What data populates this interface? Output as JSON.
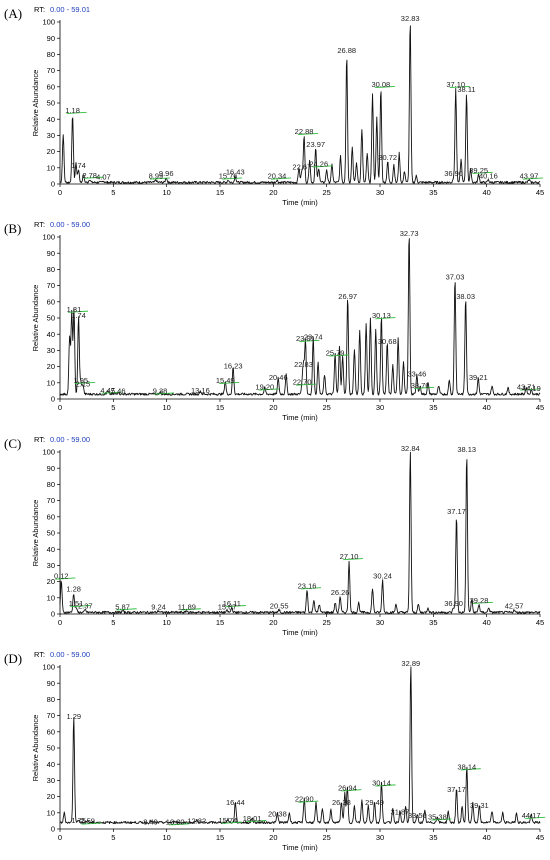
{
  "colors": {
    "trace": "#111111",
    "rt_value": "#1f3fbf",
    "baseline_marker": "#2bbf3a",
    "axis": "#000000"
  },
  "chart_data": [
    {
      "type": "line",
      "panel": "(A)",
      "rt_prefix": "RT:",
      "rt_range": "0.00 - 59.01",
      "xlabel": "Time (min)",
      "ylabel": "Relative Abundance",
      "xlim": [
        0,
        45
      ],
      "ylim": [
        0,
        100
      ],
      "xticks": [
        0,
        5,
        10,
        15,
        20,
        25,
        30,
        35,
        40,
        45
      ],
      "yticks": [
        0,
        10,
        20,
        30,
        40,
        50,
        60,
        70,
        80,
        90,
        100
      ],
      "peaks": [
        {
          "rt": 1.18,
          "y": 42,
          "label": "1.18"
        },
        {
          "rt": 1.74,
          "y": 8,
          "label": "1.74"
        },
        {
          "rt": 2.78,
          "y": 2,
          "label": "2.78"
        },
        {
          "rt": 4.07,
          "y": 1,
          "label": "4.07"
        },
        {
          "rt": 8.99,
          "y": 1.5,
          "label": "8.99"
        },
        {
          "rt": 9.96,
          "y": 3,
          "label": "9.96"
        },
        {
          "rt": 15.76,
          "y": 1.5,
          "label": "15.76"
        },
        {
          "rt": 16.43,
          "y": 4,
          "label": "16.43"
        },
        {
          "rt": 20.34,
          "y": 1.5,
          "label": "20.34"
        },
        {
          "rt": 22.67,
          "y": 7,
          "label": "22.67"
        },
        {
          "rt": 22.88,
          "y": 29,
          "label": "22.88"
        },
        {
          "rt": 23.97,
          "y": 21,
          "label": "23.97"
        },
        {
          "rt": 24.26,
          "y": 9,
          "label": "24.26"
        },
        {
          "rt": 26.88,
          "y": 79,
          "label": "26.88"
        },
        {
          "rt": 30.08,
          "y": 58,
          "label": "30.08"
        },
        {
          "rt": 30.72,
          "y": 13,
          "label": "30.72"
        },
        {
          "rt": 32.83,
          "y": 100,
          "label": "32.83"
        },
        {
          "rt": 36.9,
          "y": 3,
          "label": "36.90"
        },
        {
          "rt": 37.1,
          "y": 58,
          "label": "37.10"
        },
        {
          "rt": 38.11,
          "y": 55,
          "label": "38.11"
        },
        {
          "rt": 39.25,
          "y": 5,
          "label": "39.25"
        },
        {
          "rt": 40.16,
          "y": 1.5,
          "label": "40.16"
        },
        {
          "rt": 43.97,
          "y": 1.5,
          "label": "43.97"
        }
      ],
      "extra_peaks": [
        {
          "rt": 0.3,
          "y": 30
        },
        {
          "rt": 1.5,
          "y": 12
        },
        {
          "rt": 2.2,
          "y": 5
        },
        {
          "rt": 22.4,
          "y": 9
        },
        {
          "rt": 23.4,
          "y": 14
        },
        {
          "rt": 25.0,
          "y": 8
        },
        {
          "rt": 25.5,
          "y": 11
        },
        {
          "rt": 26.3,
          "y": 16
        },
        {
          "rt": 27.4,
          "y": 22
        },
        {
          "rt": 27.8,
          "y": 12
        },
        {
          "rt": 28.3,
          "y": 33
        },
        {
          "rt": 28.8,
          "y": 18
        },
        {
          "rt": 29.3,
          "y": 55
        },
        {
          "rt": 29.7,
          "y": 40
        },
        {
          "rt": 31.3,
          "y": 11
        },
        {
          "rt": 31.8,
          "y": 18
        },
        {
          "rt": 32.3,
          "y": 7
        },
        {
          "rt": 33.4,
          "y": 4
        },
        {
          "rt": 37.6,
          "y": 14
        },
        {
          "rt": 38.5,
          "y": 8
        }
      ],
      "baseline_y": 1
    },
    {
      "type": "line",
      "panel": "(B)",
      "rt_prefix": "RT:",
      "rt_range": "0.00 - 59.00",
      "xlabel": "Time (min)",
      "ylabel": "Relative Abundance",
      "xlim": [
        0,
        45
      ],
      "ylim": [
        0,
        100
      ],
      "xticks": [
        0,
        5,
        10,
        15,
        20,
        25,
        30,
        35,
        40,
        45
      ],
      "yticks": [
        0,
        10,
        20,
        30,
        40,
        50,
        60,
        70,
        80,
        90,
        100
      ],
      "peaks": [
        {
          "rt": 1.31,
          "y": 52,
          "label": "1.31"
        },
        {
          "rt": 1.74,
          "y": 48,
          "label": "1.74"
        },
        {
          "rt": 1.95,
          "y": 8,
          "label": "1.95"
        },
        {
          "rt": 2.15,
          "y": 6,
          "label": "2.15"
        },
        {
          "rt": 4.47,
          "y": 2,
          "label": "4.47"
        },
        {
          "rt": 5.46,
          "y": 1.5,
          "label": "5.46"
        },
        {
          "rt": 9.38,
          "y": 1.5,
          "label": "9.38"
        },
        {
          "rt": 13.16,
          "y": 2,
          "label": "13.16"
        },
        {
          "rt": 15.49,
          "y": 8,
          "label": "15.49"
        },
        {
          "rt": 16.23,
          "y": 17,
          "label": "16.23"
        },
        {
          "rt": 19.2,
          "y": 4,
          "label": "19.20"
        },
        {
          "rt": 20.46,
          "y": 10,
          "label": "20.46"
        },
        {
          "rt": 22.7,
          "y": 7,
          "label": "22.70"
        },
        {
          "rt": 22.83,
          "y": 18,
          "label": "22.83"
        },
        {
          "rt": 23.01,
          "y": 34,
          "label": "23.01"
        },
        {
          "rt": 23.74,
          "y": 35,
          "label": "23.74"
        },
        {
          "rt": 25.79,
          "y": 25,
          "label": "25.79"
        },
        {
          "rt": 26.97,
          "y": 60,
          "label": "26.97"
        },
        {
          "rt": 30.13,
          "y": 48,
          "label": "30.13"
        },
        {
          "rt": 30.68,
          "y": 32,
          "label": "30.68"
        },
        {
          "rt": 32.73,
          "y": 100,
          "label": "32.73"
        },
        {
          "rt": 33.46,
          "y": 12,
          "label": "33.46"
        },
        {
          "rt": 33.76,
          "y": 5,
          "label": "33.76"
        },
        {
          "rt": 37.03,
          "y": 72,
          "label": "37.03"
        },
        {
          "rt": 38.03,
          "y": 60,
          "label": "38.03"
        },
        {
          "rt": 39.21,
          "y": 10,
          "label": "39.21"
        },
        {
          "rt": 43.71,
          "y": 4,
          "label": "43.71"
        },
        {
          "rt": 44.19,
          "y": 3,
          "label": "44.19"
        }
      ],
      "extra_peaks": [
        {
          "rt": 0.9,
          "y": 35
        },
        {
          "rt": 1.1,
          "y": 50
        },
        {
          "rt": 21.2,
          "y": 12
        },
        {
          "rt": 24.2,
          "y": 20
        },
        {
          "rt": 24.8,
          "y": 12
        },
        {
          "rt": 26.2,
          "y": 30
        },
        {
          "rt": 26.5,
          "y": 24
        },
        {
          "rt": 27.6,
          "y": 28
        },
        {
          "rt": 28.1,
          "y": 40
        },
        {
          "rt": 28.7,
          "y": 44
        },
        {
          "rt": 29.1,
          "y": 47
        },
        {
          "rt": 29.6,
          "y": 40
        },
        {
          "rt": 31.2,
          "y": 18
        },
        {
          "rt": 31.7,
          "y": 35
        },
        {
          "rt": 32.2,
          "y": 20
        },
        {
          "rt": 34.5,
          "y": 7
        },
        {
          "rt": 35.5,
          "y": 5
        },
        {
          "rt": 36.5,
          "y": 9
        },
        {
          "rt": 40.5,
          "y": 5
        },
        {
          "rt": 42.0,
          "y": 4
        }
      ],
      "baseline_y": 3
    },
    {
      "type": "line",
      "panel": "(C)",
      "rt_prefix": "RT:",
      "rt_range": "0.00 - 59.00",
      "xlabel": "Time (min)",
      "ylabel": "Relative Abundance",
      "xlim": [
        0,
        45
      ],
      "ylim": [
        0,
        100
      ],
      "xticks": [
        0,
        5,
        10,
        15,
        20,
        25,
        30,
        35,
        40,
        45
      ],
      "yticks": [
        0,
        10,
        20,
        30,
        40,
        50,
        60,
        70,
        80,
        90,
        100
      ],
      "peaks": [
        {
          "rt": 0.12,
          "y": 20,
          "label": "0.12"
        },
        {
          "rt": 1.28,
          "y": 12,
          "label": "1.28"
        },
        {
          "rt": 1.51,
          "y": 3,
          "label": "1.51"
        },
        {
          "rt": 2.37,
          "y": 1.5,
          "label": "2.37"
        },
        {
          "rt": 5.87,
          "y": 1,
          "label": "5.87"
        },
        {
          "rt": 9.24,
          "y": 1,
          "label": "9.24"
        },
        {
          "rt": 11.89,
          "y": 1,
          "label": "11.89"
        },
        {
          "rt": 15.67,
          "y": 1,
          "label": "15.67"
        },
        {
          "rt": 16.11,
          "y": 3,
          "label": "16.11"
        },
        {
          "rt": 20.55,
          "y": 1.5,
          "label": "20.55"
        },
        {
          "rt": 23.16,
          "y": 14,
          "label": "23.16"
        },
        {
          "rt": 26.26,
          "y": 10,
          "label": "26.26"
        },
        {
          "rt": 27.1,
          "y": 32,
          "label": "27.10"
        },
        {
          "rt": 30.24,
          "y": 20,
          "label": "30.24"
        },
        {
          "rt": 32.84,
          "y": 100,
          "label": "32.84"
        },
        {
          "rt": 36.9,
          "y": 3,
          "label": "36.90"
        },
        {
          "rt": 37.17,
          "y": 60,
          "label": "37.17"
        },
        {
          "rt": 38.13,
          "y": 98,
          "label": "38.13"
        },
        {
          "rt": 39.28,
          "y": 5,
          "label": "39.28"
        },
        {
          "rt": 42.57,
          "y": 1.5,
          "label": "42.57"
        }
      ],
      "extra_peaks": [
        {
          "rt": 23.8,
          "y": 8
        },
        {
          "rt": 24.3,
          "y": 5
        },
        {
          "rt": 25.8,
          "y": 6
        },
        {
          "rt": 28.0,
          "y": 6
        },
        {
          "rt": 29.3,
          "y": 15
        },
        {
          "rt": 31.5,
          "y": 5
        },
        {
          "rt": 33.6,
          "y": 5
        },
        {
          "rt": 34.5,
          "y": 3
        },
        {
          "rt": 38.6,
          "y": 8
        },
        {
          "rt": 40.2,
          "y": 3
        }
      ],
      "baseline_y": 1
    },
    {
      "type": "line",
      "panel": "(D)",
      "rt_prefix": "RT:",
      "rt_range": "0.00 - 59.00",
      "xlabel": "Time (min)",
      "ylabel": "Relative Abundance",
      "xlim": [
        0,
        45
      ],
      "ylim": [
        0,
        100
      ],
      "xticks": [
        0,
        5,
        10,
        15,
        20,
        25,
        30,
        35,
        40,
        45
      ],
      "yticks": [
        0,
        10,
        20,
        30,
        40,
        50,
        60,
        70,
        80,
        90,
        100
      ],
      "peaks": [
        {
          "rt": 1.29,
          "y": 66,
          "label": "1.29"
        },
        {
          "rt": 1.75,
          "y": 2,
          "label": "1.75"
        },
        {
          "rt": 2.59,
          "y": 1.5,
          "label": "2.59"
        },
        {
          "rt": 8.49,
          "y": 1,
          "label": "8.49"
        },
        {
          "rt": 10.8,
          "y": 1,
          "label": "10.80"
        },
        {
          "rt": 12.82,
          "y": 1.5,
          "label": "12.82"
        },
        {
          "rt": 15.74,
          "y": 2,
          "label": "15.74"
        },
        {
          "rt": 16.44,
          "y": 13,
          "label": "16.44"
        },
        {
          "rt": 18.01,
          "y": 3,
          "label": "18.01"
        },
        {
          "rt": 20.38,
          "y": 6,
          "label": "20.38"
        },
        {
          "rt": 22.9,
          "y": 15,
          "label": "22.90"
        },
        {
          "rt": 26.38,
          "y": 13,
          "label": "26.38"
        },
        {
          "rt": 26.94,
          "y": 22,
          "label": "26.94"
        },
        {
          "rt": 29.49,
          "y": 13,
          "label": "29.49"
        },
        {
          "rt": 30.14,
          "y": 25,
          "label": "30.14"
        },
        {
          "rt": 31.87,
          "y": 7,
          "label": "31.87"
        },
        {
          "rt": 32.89,
          "y": 100,
          "label": "32.89"
        },
        {
          "rt": 33.5,
          "y": 5,
          "label": "33.50"
        },
        {
          "rt": 35.38,
          "y": 4,
          "label": "35.38"
        },
        {
          "rt": 37.17,
          "y": 21,
          "label": "37.17"
        },
        {
          "rt": 38.14,
          "y": 35,
          "label": "38.14"
        },
        {
          "rt": 39.31,
          "y": 11,
          "label": "39.31"
        },
        {
          "rt": 44.17,
          "y": 5,
          "label": "44.17"
        }
      ],
      "extra_peaks": [
        {
          "rt": 0.4,
          "y": 6
        },
        {
          "rt": 21.5,
          "y": 6
        },
        {
          "rt": 24.0,
          "y": 12
        },
        {
          "rt": 24.6,
          "y": 9
        },
        {
          "rt": 25.4,
          "y": 8
        },
        {
          "rt": 26.7,
          "y": 18
        },
        {
          "rt": 27.6,
          "y": 10
        },
        {
          "rt": 28.3,
          "y": 14
        },
        {
          "rt": 28.9,
          "y": 11
        },
        {
          "rt": 31.2,
          "y": 9
        },
        {
          "rt": 32.4,
          "y": 10
        },
        {
          "rt": 34.2,
          "y": 7
        },
        {
          "rt": 36.4,
          "y": 7
        },
        {
          "rt": 37.7,
          "y": 10
        },
        {
          "rt": 38.7,
          "y": 12
        },
        {
          "rt": 40.5,
          "y": 7
        },
        {
          "rt": 41.5,
          "y": 6
        },
        {
          "rt": 42.8,
          "y": 6
        }
      ],
      "baseline_y": 4
    }
  ]
}
